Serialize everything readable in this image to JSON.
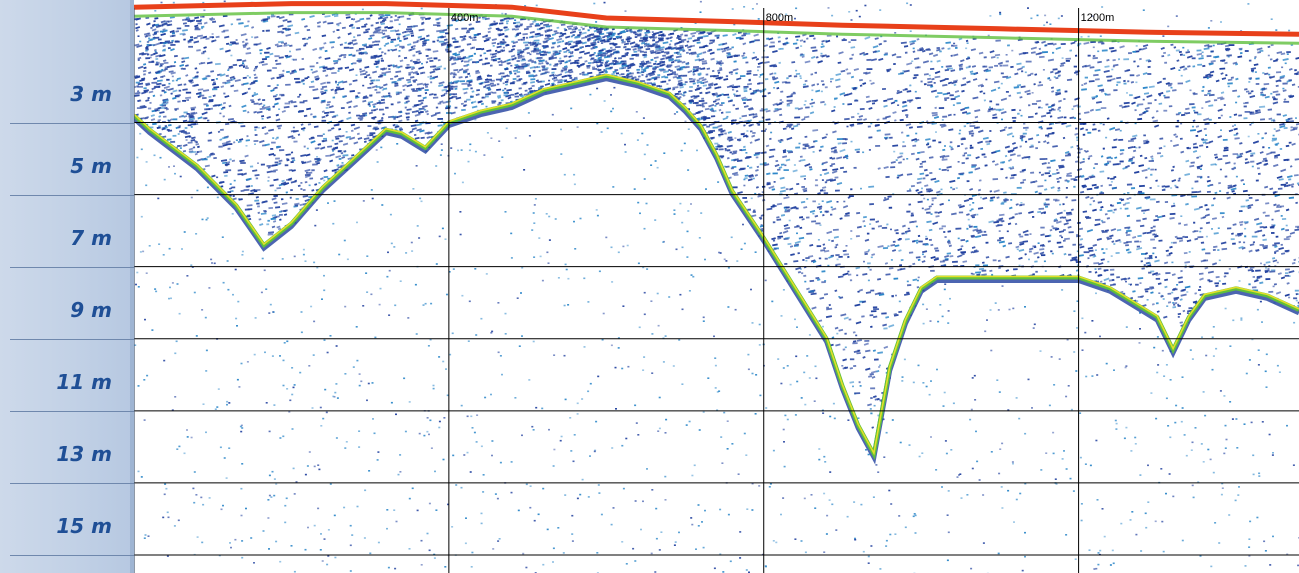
{
  "colors": {
    "panel_text": "#1f4f96",
    "grid": "#000000",
    "surface": "#e8401a",
    "weak_echo": "#2a86c8",
    "medium_echo": "#1f3f9e",
    "strong_echo_green": "#5fbf3c",
    "strong_echo_yellow": "#f2e227"
  },
  "chart_data": {
    "type": "heatmap",
    "title": "",
    "xlabel": "",
    "ylabel": "",
    "x_unit": "m",
    "y_unit": "m",
    "xlim": [
      0,
      1480
    ],
    "ylim": [
      0.6,
      16.5
    ],
    "x_ticks": [
      {
        "value": 400,
        "label": "400m"
      },
      {
        "value": 800,
        "label": "800m"
      },
      {
        "value": 1200,
        "label": "1200m"
      }
    ],
    "y_ticks": [
      {
        "value": 3,
        "label": "3 m"
      },
      {
        "value": 5,
        "label": "5 m"
      },
      {
        "value": 7,
        "label": "7 m"
      },
      {
        "value": 9,
        "label": "9 m"
      },
      {
        "value": 11,
        "label": "11 m"
      },
      {
        "value": 13,
        "label": "13 m"
      },
      {
        "value": 15,
        "label": "15 m"
      }
    ],
    "grid": true,
    "surface_line": {
      "x": [
        0,
        200,
        320,
        480,
        600,
        760,
        900,
        1100,
        1300,
        1480
      ],
      "depth": [
        0.8,
        0.7,
        0.7,
        0.8,
        1.1,
        1.2,
        1.3,
        1.4,
        1.5,
        1.55
      ]
    },
    "bottom_profile": {
      "x": [
        0,
        20,
        80,
        130,
        165,
        200,
        240,
        280,
        320,
        340,
        370,
        400,
        440,
        480,
        520,
        560,
        600,
        640,
        680,
        700,
        720,
        740,
        760,
        800,
        840,
        880,
        900,
        920,
        940,
        960,
        980,
        1000,
        1020,
        1040,
        1060,
        1100,
        1160,
        1200,
        1240,
        1300,
        1320,
        1340,
        1360,
        1400,
        1440,
        1480
      ],
      "depth": [
        3.8,
        4.2,
        5.2,
        6.3,
        7.4,
        6.8,
        5.8,
        5.0,
        4.2,
        4.3,
        4.7,
        4.0,
        3.7,
        3.5,
        3.1,
        2.9,
        2.7,
        2.9,
        3.2,
        3.6,
        4.1,
        4.9,
        5.9,
        7.2,
        8.6,
        10.0,
        11.3,
        12.4,
        13.2,
        10.8,
        9.5,
        8.6,
        8.3,
        8.3,
        8.3,
        8.3,
        8.3,
        8.3,
        8.6,
        9.4,
        10.3,
        9.4,
        8.8,
        8.6,
        8.8,
        9.2
      ]
    }
  }
}
